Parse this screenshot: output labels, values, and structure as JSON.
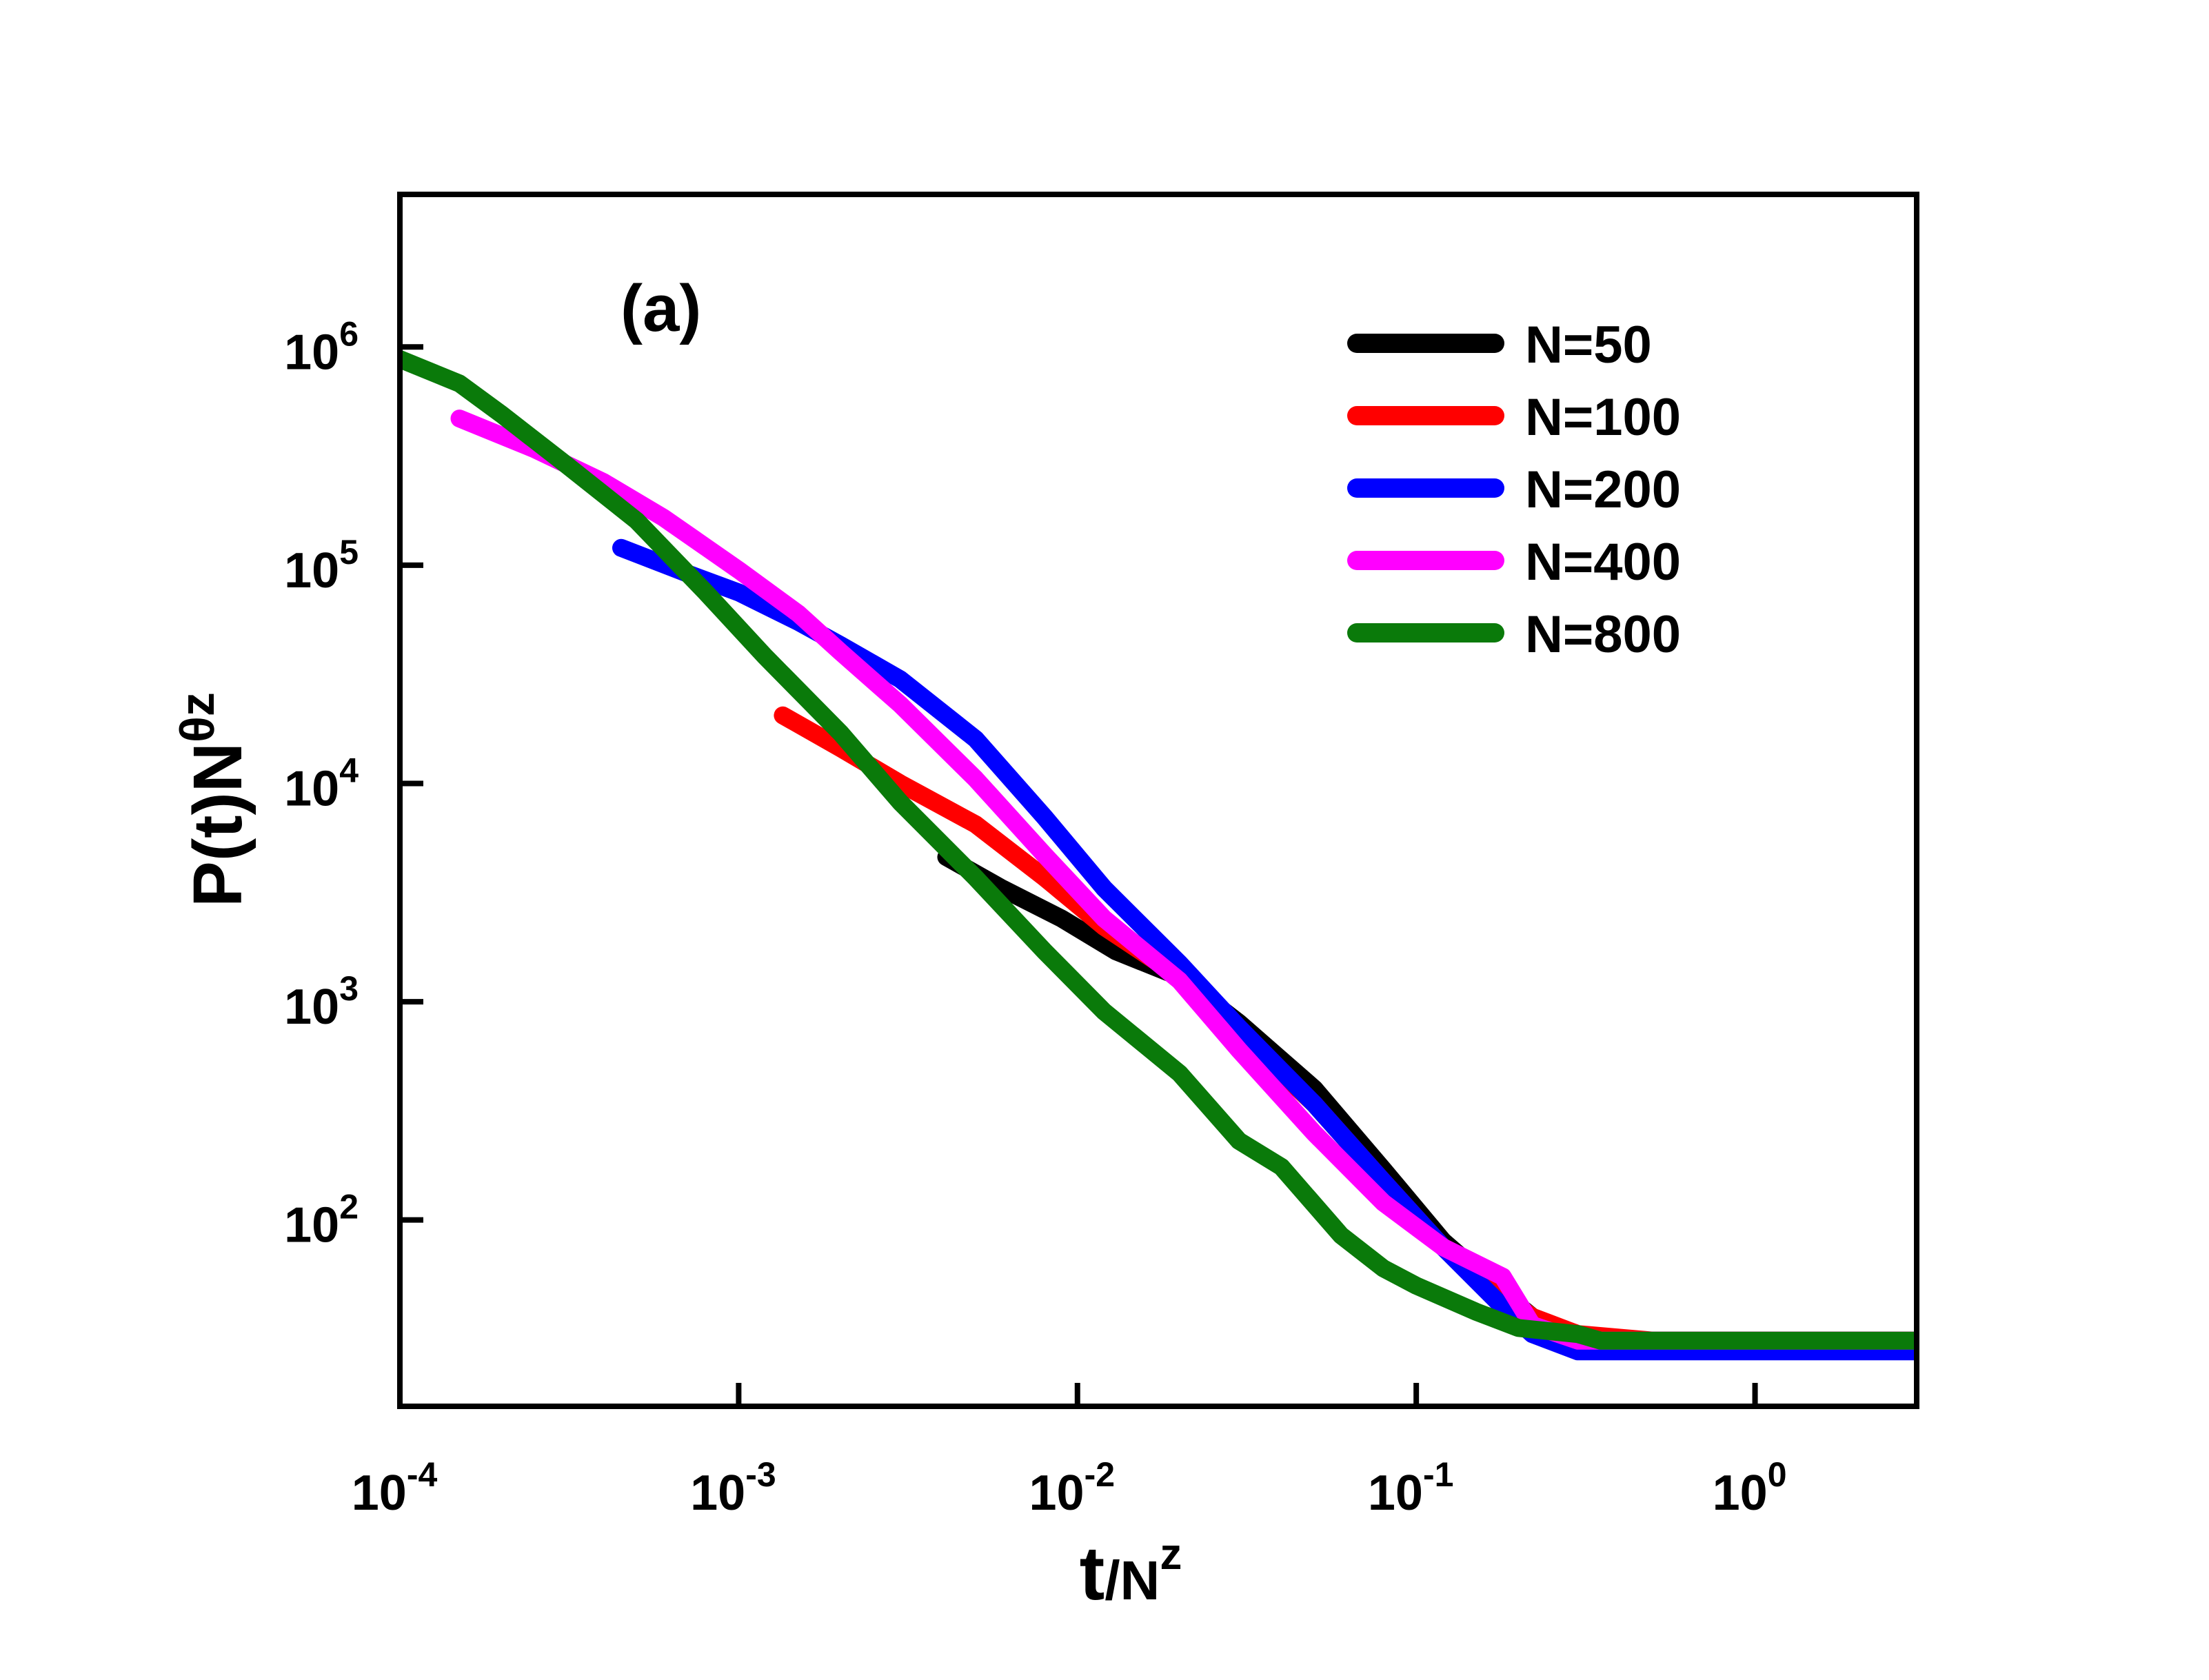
{
  "chart_data": {
    "type": "line",
    "panel_label": "(a)",
    "xlabel": {
      "base": "t",
      "slash": "/N",
      "sup": "z"
    },
    "ylabel": {
      "base": "P(t)N",
      "sup": "θz"
    },
    "x_scale": "log",
    "y_scale": "log",
    "xlim": [
      0.0001,
      3.0
    ],
    "ylim": [
      14,
      5000000
    ],
    "x_ticks": [
      {
        "value": 0.0001,
        "base": "10",
        "exp": "-4"
      },
      {
        "value": 0.001,
        "base": "10",
        "exp": "-3"
      },
      {
        "value": 0.01,
        "base": "10",
        "exp": "-2"
      },
      {
        "value": 0.1,
        "base": "10",
        "exp": "-1"
      },
      {
        "value": 1,
        "base": "10",
        "exp": "0"
      }
    ],
    "y_ticks": [
      {
        "value": 100,
        "base": "10",
        "exp": "2"
      },
      {
        "value": 1000,
        "base": "10",
        "exp": "3"
      },
      {
        "value": 10000,
        "base": "10",
        "exp": "4"
      },
      {
        "value": 100000,
        "base": "10",
        "exp": "5"
      },
      {
        "value": 1000000,
        "base": "10",
        "exp": "6"
      }
    ],
    "legend_position": "top-right",
    "series": [
      {
        "name": "N=50",
        "color": "#000000",
        "x": [
          0.0041,
          0.006,
          0.009,
          0.013,
          0.02,
          0.03,
          0.05,
          0.08,
          0.12,
          0.17,
          0.22,
          0.27,
          0.33,
          0.5,
          1,
          3
        ],
        "y": [
          4600,
          3300,
          2400,
          1700,
          1300,
          800,
          400,
          170,
          80,
          50,
          36,
          30,
          28,
          28,
          28,
          28
        ]
      },
      {
        "name": "N=100",
        "color": "#ff0000",
        "x": [
          0.00135,
          0.002,
          0.003,
          0.005,
          0.008,
          0.012,
          0.02,
          0.03,
          0.05,
          0.08,
          0.12,
          0.18,
          0.22,
          0.3,
          0.5,
          1,
          3
        ],
        "y": [
          20500,
          14500,
          10000,
          6500,
          3700,
          2200,
          1300,
          720,
          340,
          150,
          75,
          45,
          36,
          30,
          28,
          28,
          28
        ]
      },
      {
        "name": "N=200",
        "color": "#0000ff",
        "x": [
          0.00045,
          0.0007,
          0.001,
          0.0015,
          0.002,
          0.003,
          0.005,
          0.008,
          0.012,
          0.02,
          0.03,
          0.05,
          0.08,
          0.12,
          0.18,
          0.22,
          0.3,
          0.5,
          1,
          3
        ],
        "y": [
          120000,
          92000,
          75000,
          55000,
          43000,
          30000,
          16000,
          7000,
          3300,
          1500,
          760,
          340,
          150,
          75,
          40,
          30,
          25,
          25,
          25,
          25
        ]
      },
      {
        "name": "N=400",
        "color": "#ff00ff",
        "x": [
          0.00015,
          0.00025,
          0.0004,
          0.0006,
          0.001,
          0.0015,
          0.002,
          0.003,
          0.005,
          0.008,
          0.012,
          0.02,
          0.03,
          0.05,
          0.08,
          0.12,
          0.18,
          0.22,
          0.3,
          0.5,
          1,
          3
        ],
        "y": [
          470000,
          340000,
          240000,
          165000,
          95000,
          60000,
          40000,
          23000,
          10500,
          4700,
          2400,
          1250,
          600,
          250,
          120,
          75,
          55,
          33,
          28,
          28,
          28,
          28
        ]
      },
      {
        "name": "N=800",
        "color": "#0a7a0a",
        "x": [
          0.0001,
          0.00015,
          0.0002,
          0.0003,
          0.0005,
          0.0008,
          0.0012,
          0.002,
          0.003,
          0.005,
          0.008,
          0.012,
          0.02,
          0.03,
          0.04,
          0.06,
          0.08,
          0.1,
          0.15,
          0.2,
          0.3,
          0.35,
          0.5,
          1,
          3
        ],
        "y": [
          880000,
          680000,
          490000,
          300000,
          160000,
          75000,
          38000,
          17000,
          8200,
          3700,
          1700,
          900,
          470,
          230,
          175,
          85,
          60,
          50,
          38,
          32,
          30,
          28,
          28,
          28,
          28
        ]
      }
    ]
  }
}
